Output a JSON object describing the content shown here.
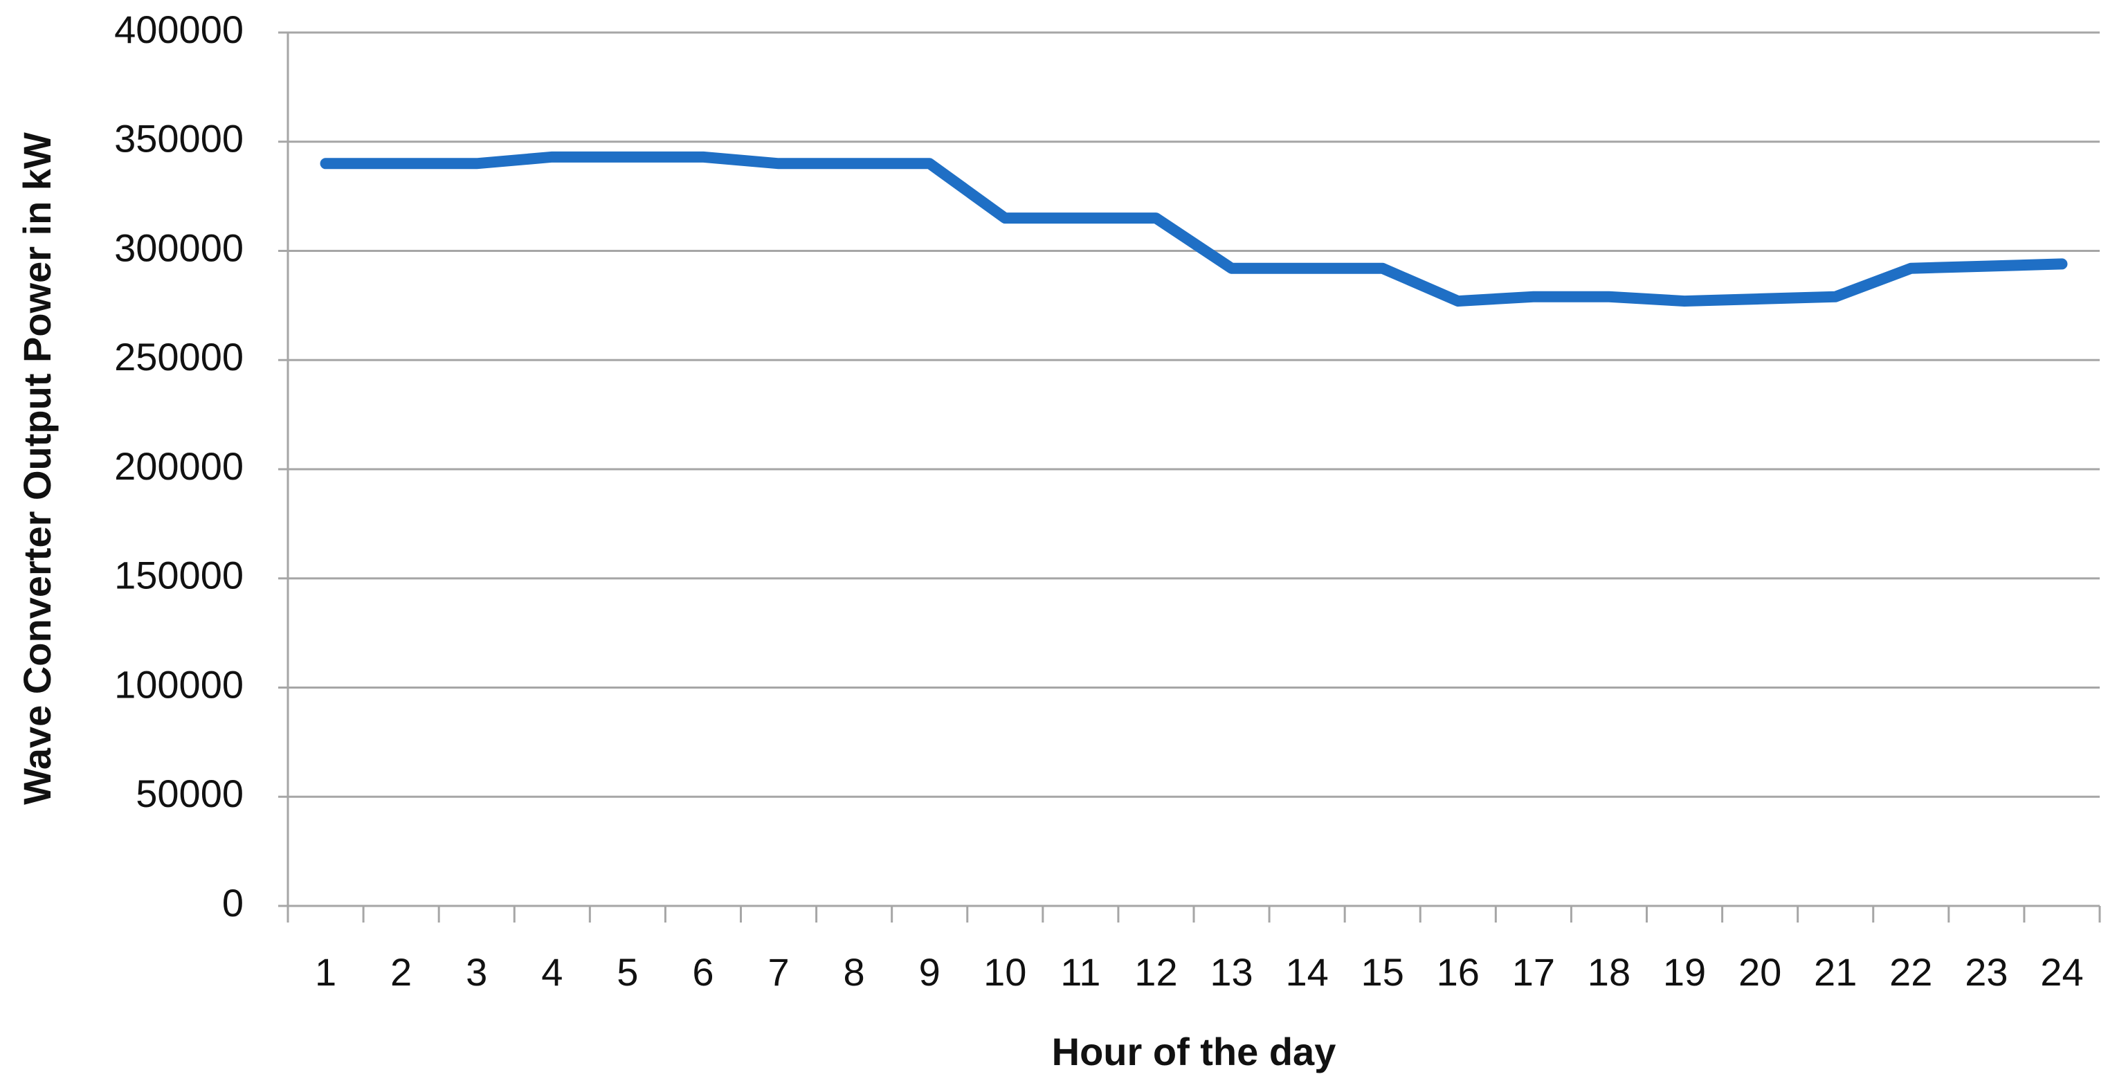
{
  "chart_data": {
    "type": "line",
    "x_label": "Hour of the day",
    "y_label": "Wave Converter Output Power in kW",
    "categories": [
      "1",
      "2",
      "3",
      "4",
      "5",
      "6",
      "7",
      "8",
      "9",
      "10",
      "11",
      "12",
      "13",
      "14",
      "15",
      "16",
      "17",
      "18",
      "19",
      "20",
      "21",
      "22",
      "23",
      "24"
    ],
    "series": [
      {
        "color": "#1f6fc5",
        "values": [
          340000,
          340000,
          340000,
          343000,
          343000,
          343000,
          340000,
          340000,
          340000,
          315000,
          315000,
          315000,
          292000,
          292000,
          292000,
          277000,
          279000,
          279000,
          277000,
          278000,
          279000,
          292000,
          293000,
          294000
        ]
      }
    ],
    "ylim": [
      0,
      400000
    ],
    "yticks": [
      0,
      50000,
      100000,
      150000,
      200000,
      250000,
      300000,
      350000,
      400000
    ],
    "grid": true
  }
}
